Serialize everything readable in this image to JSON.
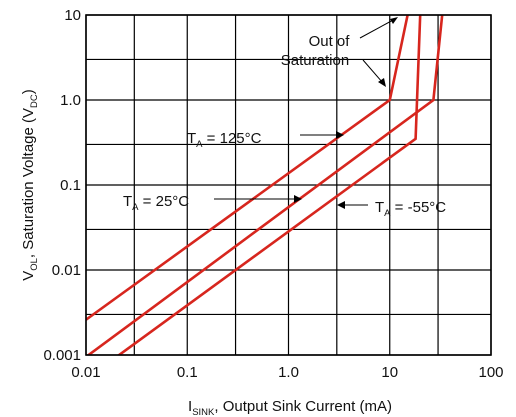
{
  "chart_data": {
    "type": "line",
    "xscale": "log",
    "yscale": "log",
    "xlim": [
      0.01,
      100
    ],
    "ylim": [
      0.001,
      10
    ],
    "grid": true,
    "xlabel": {
      "main": "I",
      "sub": "SINK",
      "rest": ", Output Sink Current (mA)"
    },
    "ylabel": {
      "pre": "V",
      "sub1": "OL",
      "mid": ", Saturation Voltage (V",
      "sub2": "DC",
      "post": ")"
    },
    "x_ticks": [
      {
        "value": 0.01,
        "label": "0.01"
      },
      {
        "value": 0.1,
        "label": "0.1"
      },
      {
        "value": 1,
        "label": "1.0"
      },
      {
        "value": 10,
        "label": "10"
      },
      {
        "value": 100,
        "label": "100"
      }
    ],
    "y_ticks": [
      {
        "value": 0.001,
        "label": "0.001"
      },
      {
        "value": 0.01,
        "label": "0.01"
      },
      {
        "value": 0.1,
        "label": "0.1"
      },
      {
        "value": 1,
        "label": "1.0"
      },
      {
        "value": 10,
        "label": "10"
      }
    ],
    "series_color": "#d7261e",
    "series": [
      {
        "points": [
          [
            0.01,
            0.0026
          ],
          [
            10,
            1.0
          ],
          [
            15,
            10
          ]
        ]
      },
      {
        "points": [
          [
            0.01,
            0.00095
          ],
          [
            27,
            1.0
          ],
          [
            33,
            10
          ]
        ]
      },
      {
        "points": [
          [
            0.02,
            0.00095
          ],
          [
            18,
            0.35
          ],
          [
            20,
            10
          ]
        ]
      }
    ],
    "annotations": [
      {
        "name": "annotation-out-of-saturation",
        "lines": [
          "Out of",
          "Saturation"
        ]
      },
      {
        "name": "annotation-ta-125",
        "pre": "T",
        "sub": "A",
        "post": " = 125°C"
      },
      {
        "name": "annotation-ta-25",
        "pre": "T",
        "sub": "A",
        "post": " = 25°C"
      },
      {
        "name": "annotation-ta-minus55",
        "pre": "T",
        "sub": "A",
        "post": " = -55°C"
      }
    ]
  }
}
